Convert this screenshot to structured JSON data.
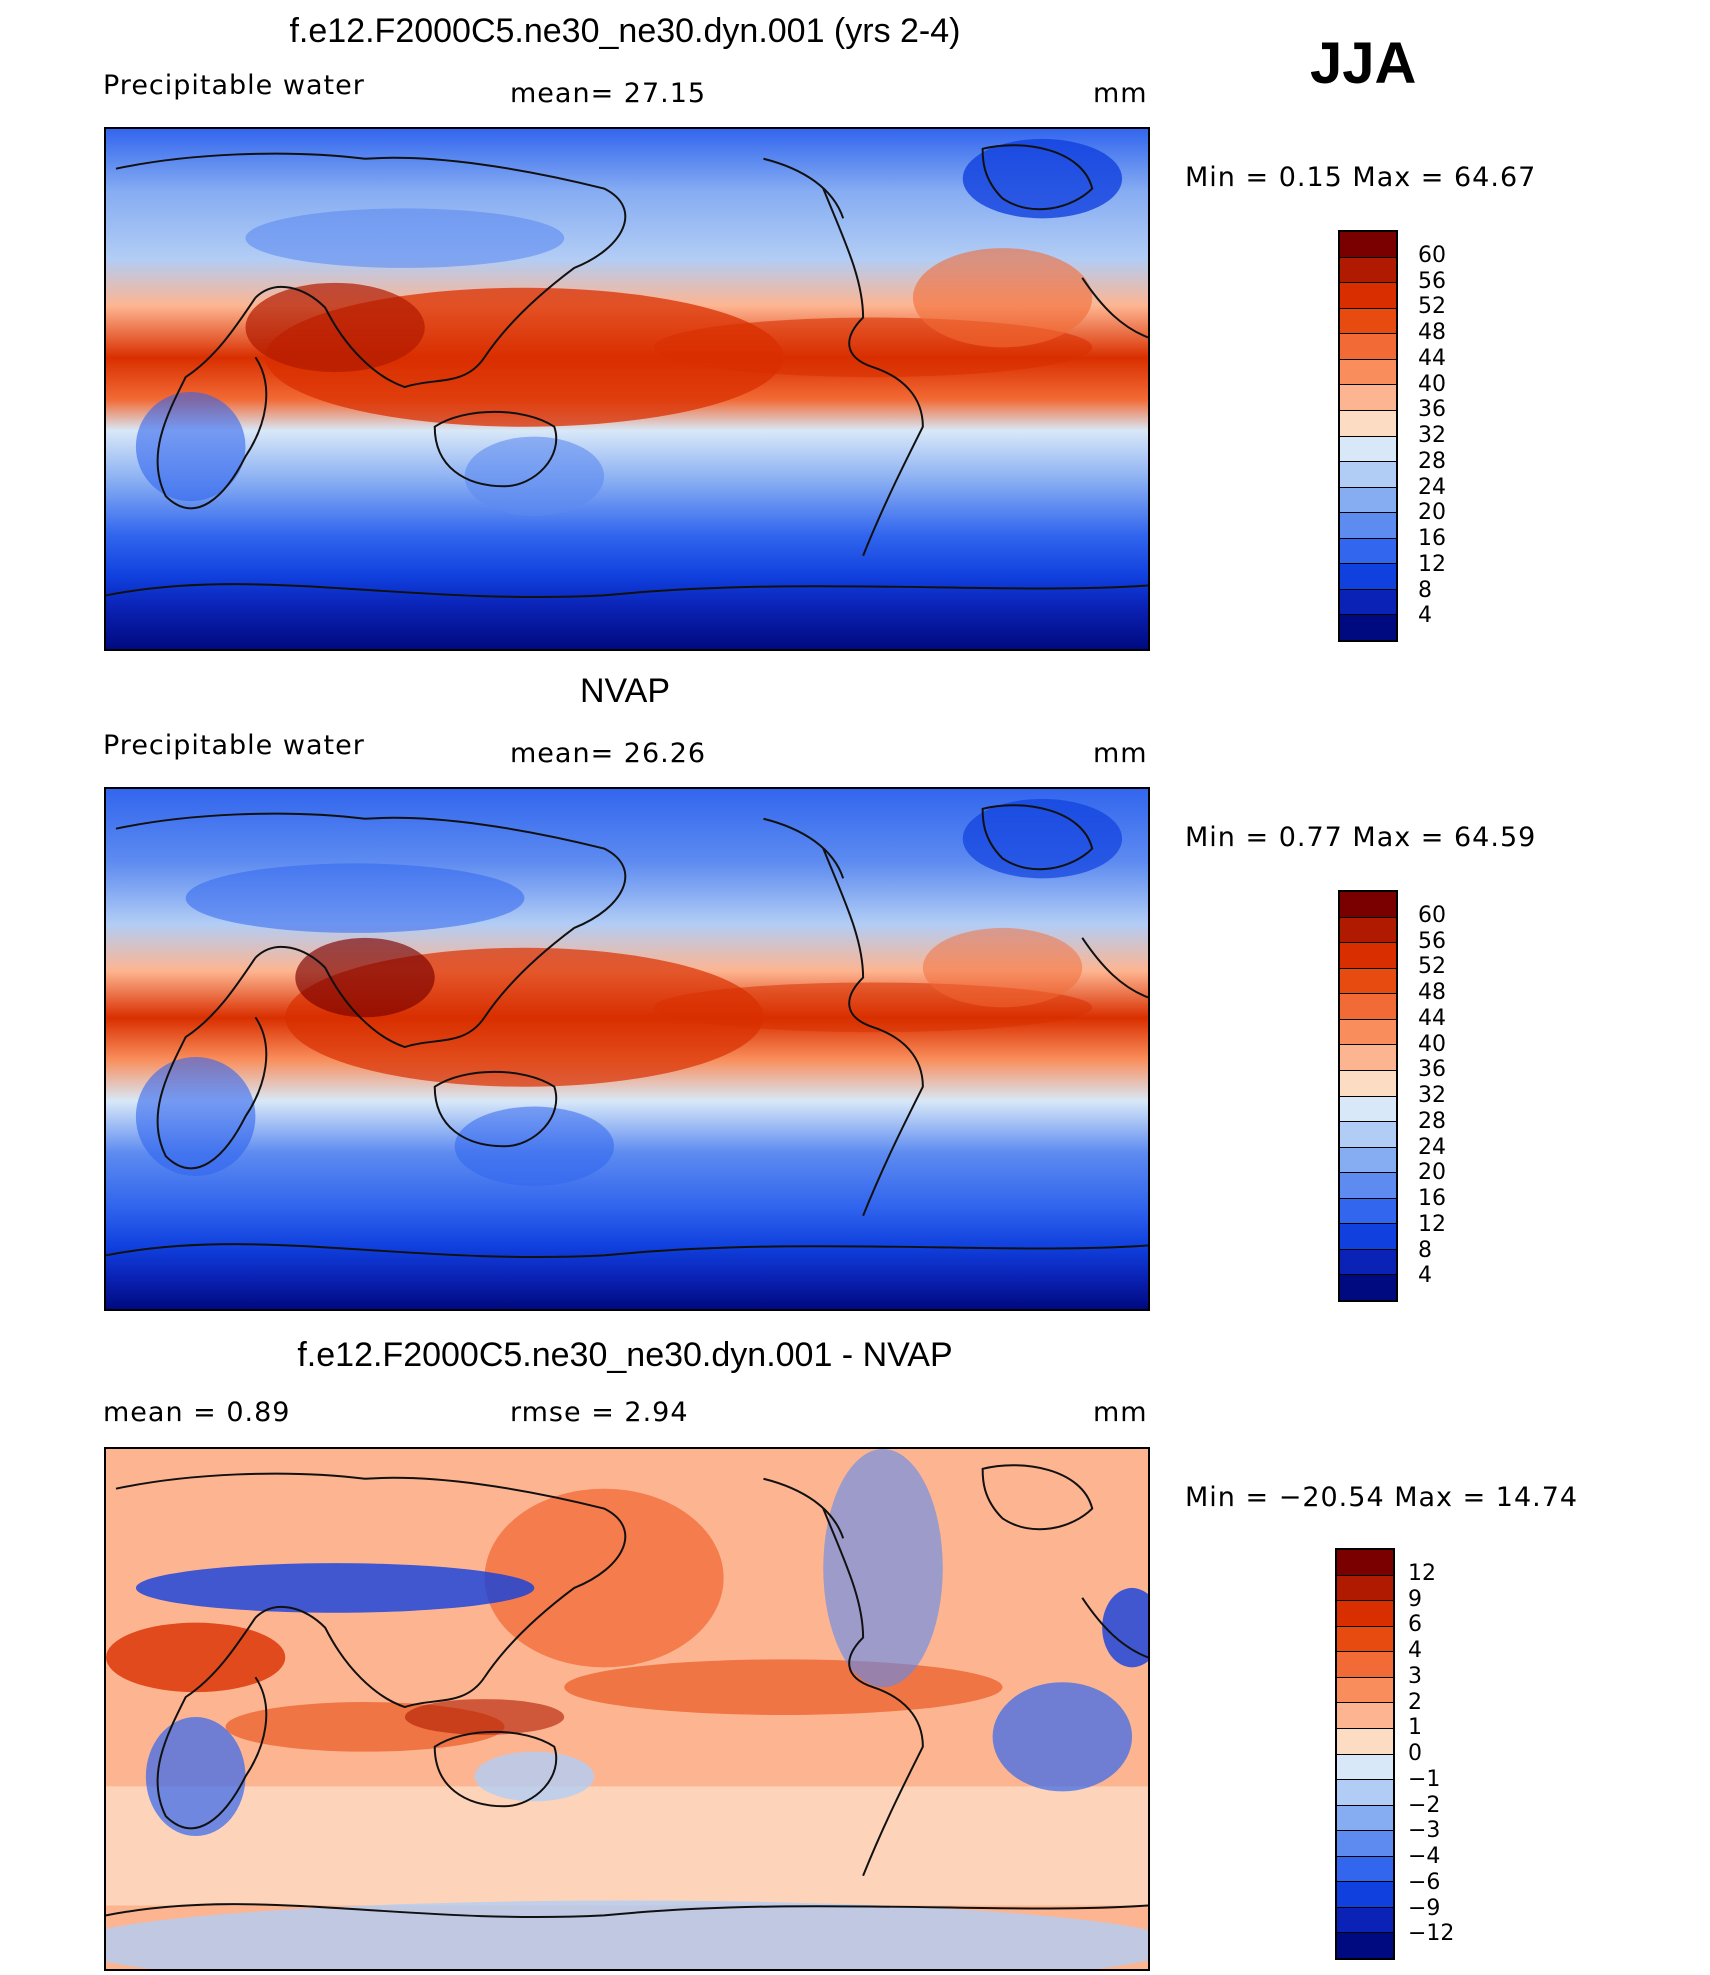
{
  "season": "JJA",
  "units": "mm",
  "land_color": "#111111",
  "panels": [
    {
      "title": "f.e12.F2000C5.ne30_ne30.dyn.001 (yrs 2-4)",
      "left_label": "Precipitable water",
      "center_label": "mean=   27.15",
      "right_label": "mm",
      "range_text": "Min  =    0.15  Max  =   64.67",
      "colorbar": {
        "labels": [
          "60",
          "56",
          "52",
          "48",
          "44",
          "40",
          "36",
          "32",
          "28",
          "24",
          "20",
          "16",
          "12",
          "8",
          "4"
        ],
        "colors": [
          "#7a0000",
          "#b01a00",
          "#d92f00",
          "#e84b10",
          "#f26a35",
          "#f98e5c",
          "#fdb591",
          "#fddcc4",
          "#d8e8f8",
          "#b2cdf5",
          "#86acf2",
          "#5d8bf0",
          "#3266ee",
          "#1040de",
          "#0a22b5",
          "#000a80"
        ]
      }
    },
    {
      "title": "NVAP",
      "left_label": "Precipitable water",
      "center_label": "mean=   26.26",
      "right_label": "mm",
      "range_text": "Min  =    0.77  Max  =   64.59",
      "colorbar": {
        "labels": [
          "60",
          "56",
          "52",
          "48",
          "44",
          "40",
          "36",
          "32",
          "28",
          "24",
          "20",
          "16",
          "12",
          "8",
          "4"
        ],
        "colors": [
          "#7a0000",
          "#b01a00",
          "#d92f00",
          "#e84b10",
          "#f26a35",
          "#f98e5c",
          "#fdb591",
          "#fddcc4",
          "#d8e8f8",
          "#b2cdf5",
          "#86acf2",
          "#5d8bf0",
          "#3266ee",
          "#1040de",
          "#0a22b5",
          "#000a80"
        ]
      }
    },
    {
      "title": "f.e12.F2000C5.ne30_ne30.dyn.001 - NVAP",
      "left_label": "mean  =     0.89",
      "center_label": "rmse  =     2.94",
      "right_label": "mm",
      "range_text": "Min  =  −20.54  Max  =    14.74",
      "colorbar": {
        "labels": [
          "12",
          "9",
          "6",
          "4",
          "3",
          "2",
          "1",
          "0",
          "−1",
          "−2",
          "−3",
          "−4",
          "−6",
          "−9",
          "−12"
        ],
        "colors": [
          "#7a0000",
          "#b01a00",
          "#d92f00",
          "#e84b10",
          "#f26a35",
          "#f98e5c",
          "#fdb591",
          "#fddcc4",
          "#d8e8f8",
          "#b2cdf5",
          "#86acf2",
          "#5d8bf0",
          "#3266ee",
          "#1040de",
          "#0a22b5",
          "#000a80"
        ]
      }
    }
  ]
}
